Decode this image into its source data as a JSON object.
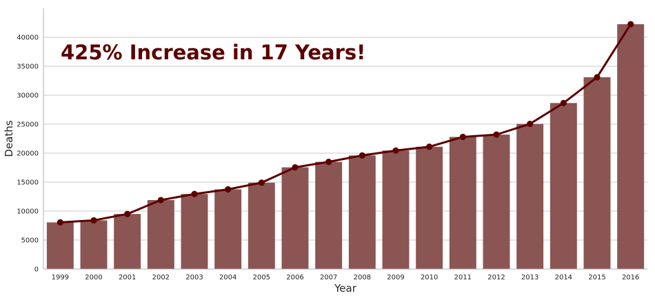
{
  "chart_data": {
    "type": "bar",
    "annotation": "425% Increase in 17 Years!",
    "xlabel": "Year",
    "ylabel": "Deaths",
    "ylim": [
      0,
      45000
    ],
    "yticks": [
      0,
      5000,
      10000,
      15000,
      20000,
      25000,
      30000,
      35000,
      40000
    ],
    "grid": true,
    "categories": [
      "1999",
      "2000",
      "2001",
      "2002",
      "2003",
      "2004",
      "2005",
      "2006",
      "2007",
      "2008",
      "2009",
      "2010",
      "2011",
      "2012",
      "2013",
      "2014",
      "2015",
      "2016"
    ],
    "series": [
      {
        "type": "bar",
        "color": "#8b5553",
        "values": [
          8050,
          8400,
          9500,
          11900,
          12950,
          13750,
          14900,
          17550,
          18500,
          19600,
          20450,
          21100,
          22800,
          23200,
          25050,
          28650,
          33100,
          42250
        ]
      },
      {
        "type": "line",
        "color": "#5c0000",
        "values": [
          8050,
          8400,
          9500,
          11900,
          12950,
          13750,
          14900,
          17550,
          18500,
          19600,
          20450,
          21100,
          22800,
          23200,
          25050,
          28650,
          33100,
          42250
        ]
      }
    ]
  }
}
